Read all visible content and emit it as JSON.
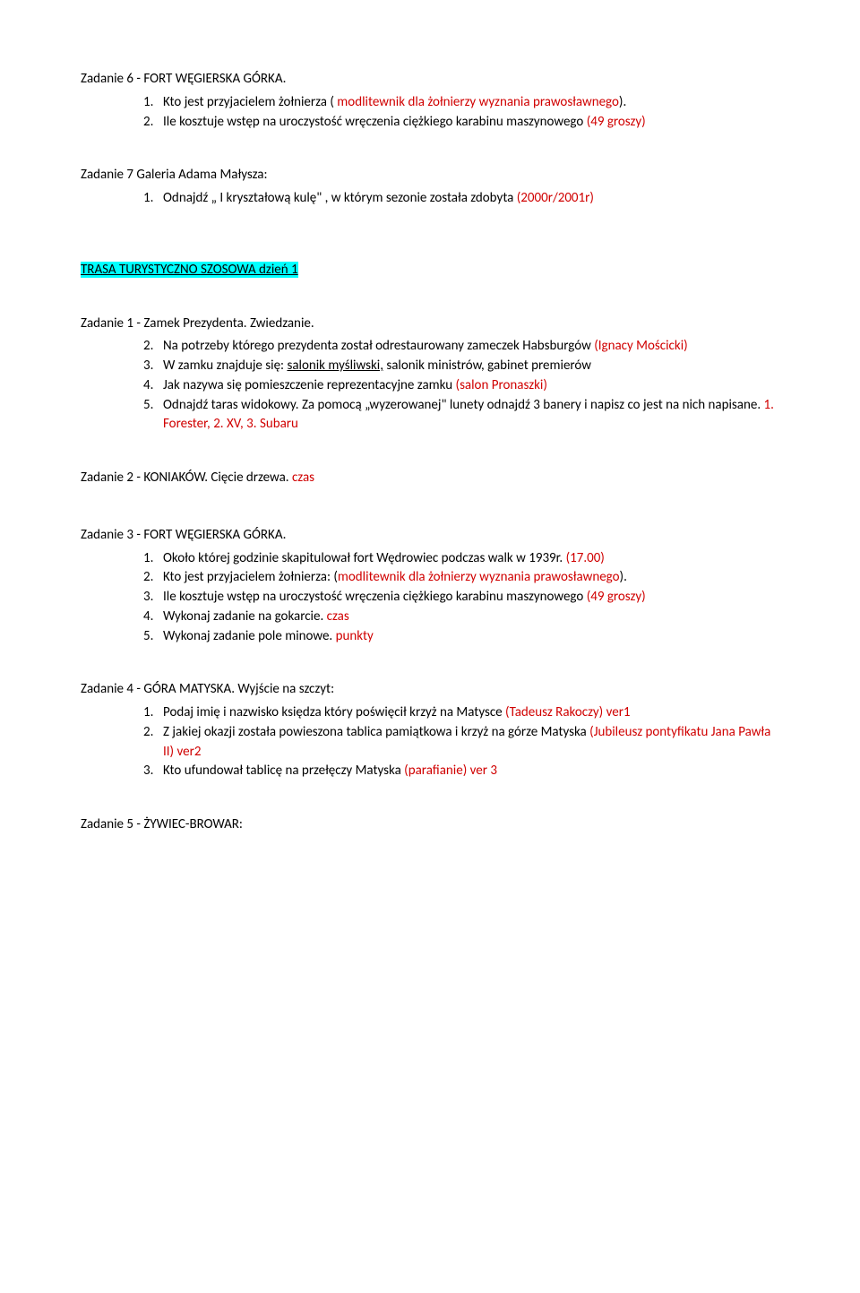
{
  "z6": {
    "title": "Zadanie 6 - FORT WĘGIERSKA GÓRKA.",
    "items": [
      {
        "n": "1.",
        "pre": "Kto jest przyjacielem żołnierza ( ",
        "ans": "modlitewnik  dla żołnierzy wyznania prawosławnego",
        "post": ")."
      },
      {
        "n": "2.",
        "pre": "Ile kosztuje wstęp na uroczystość wręczenia ciężkiego karabinu maszynowego ",
        "ans": "(49 groszy)",
        "post": ""
      }
    ]
  },
  "z7": {
    "title": "Zadanie 7 Galeria Adama Małysza:",
    "items": [
      {
        "n": "1.",
        "pre": "Odnajdź „ I kryształową kulę\" , w którym sezonie została zdobyta ",
        "ans": "(2000r/2001r)",
        "post": ""
      }
    ]
  },
  "trasa": "TRASA TURYSTYCZNO SZOSOWA dzień 1",
  "z1b": {
    "title": "Zadanie 1 - Zamek Prezydenta. Zwiedzanie.",
    "items": [
      {
        "n": "2.",
        "pre": "Na potrzeby którego prezydenta został odrestaurowany zameczek Habsburgów ",
        "ans": "(Ignacy Mościcki)",
        "post": ""
      },
      {
        "n": "3.",
        "pre1": "W zamku znajduje się: ",
        "ul": "salonik myśliwski,",
        "pre2": " salonik ministrów, gabinet premierów"
      },
      {
        "n": "4.",
        "pre": "Jak nazywa się pomieszczenie reprezentacyjne zamku ",
        "ans": "(salon Pronaszki)",
        "post": ""
      },
      {
        "n": "5.",
        "pre": "Odnajdź taras widokowy. Za pomocą „wyzerowanej\" lunety odnajdź 3 banery i napisz co jest na nich napisane. ",
        "ans": "1. Forester, 2. XV, 3. Subaru",
        "post": ""
      }
    ]
  },
  "z2b": {
    "title_pre": "Zadanie 2 - KONIAKÓW. Cięcie drzewa. ",
    "title_ans": "czas"
  },
  "z3b": {
    "title": "Zadanie 3 - FORT WĘGIERSKA GÓRKA.",
    "items": [
      {
        "n": "1.",
        "pre": "Około której godzinie skapitulował fort Wędrowiec  podczas walk w  1939r. ",
        "ans": "(17.00)",
        "post": ""
      },
      {
        "n": "2.",
        "pre": "Kto jest przyjacielem żołnierza: (",
        "ans": "modlitewnik  dla żołnierzy wyznania prawosławnego",
        "post": ")."
      },
      {
        "n": "3.",
        "pre": "Ile kosztuje wstęp na uroczystość wręczenia ciężkiego karabinu maszynowego ",
        "ans": "(49 groszy)",
        "post": ""
      },
      {
        "n": "4.",
        "pre": "Wykonaj zadanie na gokarcie. ",
        "ans": "czas",
        "post": ""
      },
      {
        "n": "5.",
        "pre": "Wykonaj zadanie pole minowe. ",
        "ans": "punkty",
        "post": ""
      }
    ]
  },
  "z4b": {
    "title": "Zadanie 4 - GÓRA MATYSKA. Wyjście na szczyt:",
    "items": [
      {
        "n": "1.",
        "pre": "Podaj imię i nazwisko księdza który poświęcił krzyż na Matysce ",
        "ans": "(Tadeusz Rakoczy) ver1",
        "post": ""
      },
      {
        "n": "2.",
        "pre": "Z jakiej okazji została powieszona tablica pamiątkowa  i krzyż na górze Matyska ",
        "ans": "(Jubileusz pontyfikatu Jana Pawła II) ver2",
        "post": ""
      },
      {
        "n": "3.",
        "pre": "Kto ufundował tablicę na przełęczy Matyska ",
        "ans": "(parafianie) ver 3",
        "post": ""
      }
    ]
  },
  "z5b": {
    "title": "Zadanie 5 - ŻYWIEC-BROWAR:"
  }
}
